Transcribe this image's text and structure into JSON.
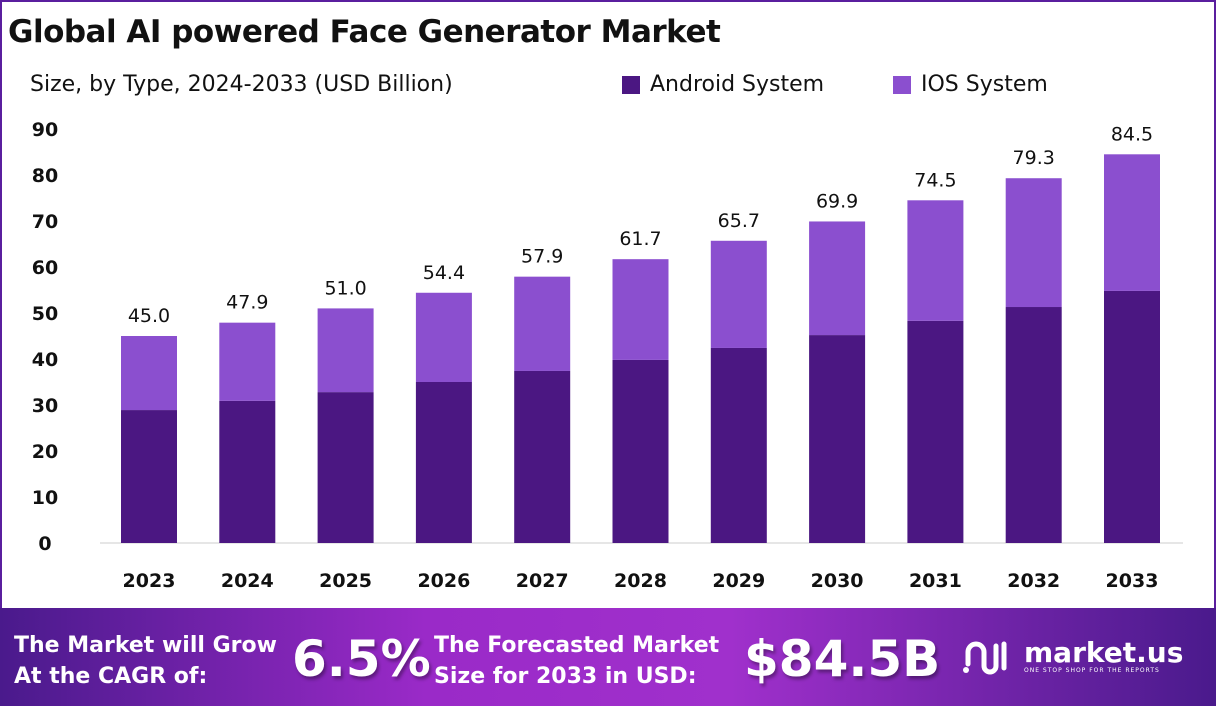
{
  "chart_data": {
    "type": "bar",
    "stacked": true,
    "title": "Global AI powered Face Generator Market",
    "subtitle": "Size, by Type, 2024-2033 (USD Billion)",
    "categories": [
      "2023",
      "2024",
      "2025",
      "2026",
      "2027",
      "2028",
      "2029",
      "2030",
      "2031",
      "2032",
      "2033"
    ],
    "series": [
      {
        "name": "Android System",
        "color": "#4b1782",
        "values": [
          28.9,
          30.9,
          32.8,
          35.0,
          37.4,
          39.8,
          42.4,
          45.2,
          48.3,
          51.3,
          54.8
        ]
      },
      {
        "name": "IOS System",
        "color": "#8b4fcf",
        "values": [
          16.1,
          17.0,
          18.2,
          19.4,
          20.5,
          21.9,
          23.3,
          24.7,
          26.2,
          28.0,
          29.7
        ]
      }
    ],
    "totals": [
      "45.0",
      "47.9",
      "51.0",
      "54.4",
      "57.9",
      "61.7",
      "65.7",
      "69.9",
      "74.5",
      "79.3",
      "84.5"
    ],
    "yticks": [
      "0",
      "10",
      "20",
      "30",
      "40",
      "50",
      "60",
      "70",
      "80",
      "90"
    ],
    "ylim": [
      0,
      90
    ],
    "legend_position": "top-right",
    "grid": false
  },
  "footer": {
    "cagr_text_1": "The Market will Grow",
    "cagr_text_2": "At the CAGR of:",
    "cagr_value": "6.5%",
    "forecast_text_1": "The Forecasted Market",
    "forecast_text_2": "Size for 2033 in USD:",
    "forecast_value": "$84.5B",
    "logo_text": "market.us",
    "logo_tagline": "ONE STOP SHOP FOR THE REPORTS"
  }
}
